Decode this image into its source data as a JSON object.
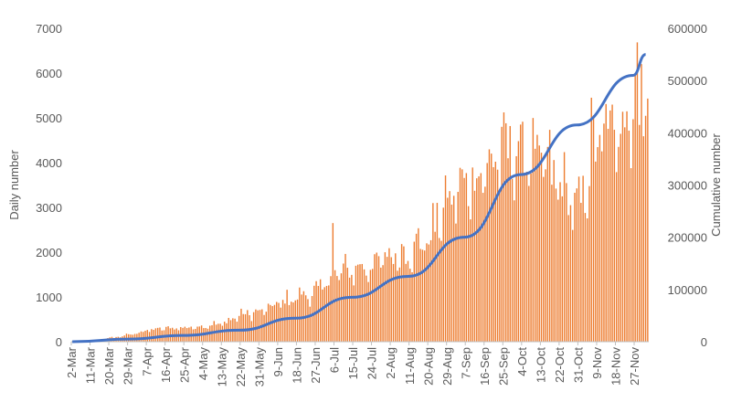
{
  "chart_data": {
    "type": "bar+line",
    "title": "",
    "xlabel": "",
    "ylabel": "Daily number",
    "y2label": "Cumulative number",
    "ylim": [
      0,
      7000
    ],
    "y2lim": [
      0,
      600000
    ],
    "yticks": [
      0,
      1000,
      2000,
      3000,
      4000,
      5000,
      6000,
      7000
    ],
    "y2ticks": [
      0,
      100000,
      200000,
      300000,
      400000,
      500000,
      600000
    ],
    "x_tick_labels": [
      "2-Mar",
      "11-Mar",
      "20-Mar",
      "29-Mar",
      "7-Apr",
      "16-Apr",
      "25-Apr",
      "4-May",
      "13-May",
      "22-May",
      "31-May",
      "9-Jun",
      "18-Jun",
      "27-Jun",
      "6-Jul",
      "15-Jul",
      "24-Jul",
      "2-Aug",
      "11-Aug",
      "20-Aug",
      "29-Aug",
      "7-Sep",
      "16-Sep",
      "25-Sep",
      "4-Oct",
      "13-Oct",
      "22-Oct",
      "31-Oct",
      "9-Nov",
      "18-Nov",
      "27-Nov"
    ],
    "x_tick_step_days": 9,
    "series": [
      {
        "type": "bar",
        "axis": "left",
        "color": "#ED7D31",
        "x_start": "2-Mar",
        "x_step_days": 1,
        "weekly_anchor_values": [
          5,
          20,
          80,
          150,
          250,
          300,
          310,
          350,
          400,
          600,
          650,
          850,
          1000,
          1100,
          1500,
          1600,
          1700,
          1900,
          2000,
          2300,
          3100,
          3500,
          3800,
          4200,
          4300,
          4000,
          3500,
          2900,
          4500,
          4800,
          5300,
          5500
        ],
        "noted_peaks": [
          {
            "x": "6-Jul",
            "value": 2650
          },
          {
            "x": "25-Sep",
            "value": 4800
          },
          {
            "x": "4-Oct",
            "value": 4850
          },
          {
            "x": "7-Nov",
            "value": 5450
          },
          {
            "x": "1-Dec",
            "value": 6200
          }
        ]
      },
      {
        "type": "line",
        "axis": "right",
        "color": "#4472C4",
        "x": [
          "2-Mar",
          "29-Mar",
          "25-Apr",
          "22-May",
          "18-Jun",
          "15-Jul",
          "11-Aug",
          "7-Sep",
          "4-Oct",
          "31-Oct",
          "27-Nov",
          "3-Dec"
        ],
        "values": [
          0,
          5000,
          12000,
          22000,
          45000,
          85000,
          125000,
          200000,
          320000,
          415000,
          510000,
          550000
        ]
      }
    ],
    "grid": false,
    "legend": "none"
  }
}
